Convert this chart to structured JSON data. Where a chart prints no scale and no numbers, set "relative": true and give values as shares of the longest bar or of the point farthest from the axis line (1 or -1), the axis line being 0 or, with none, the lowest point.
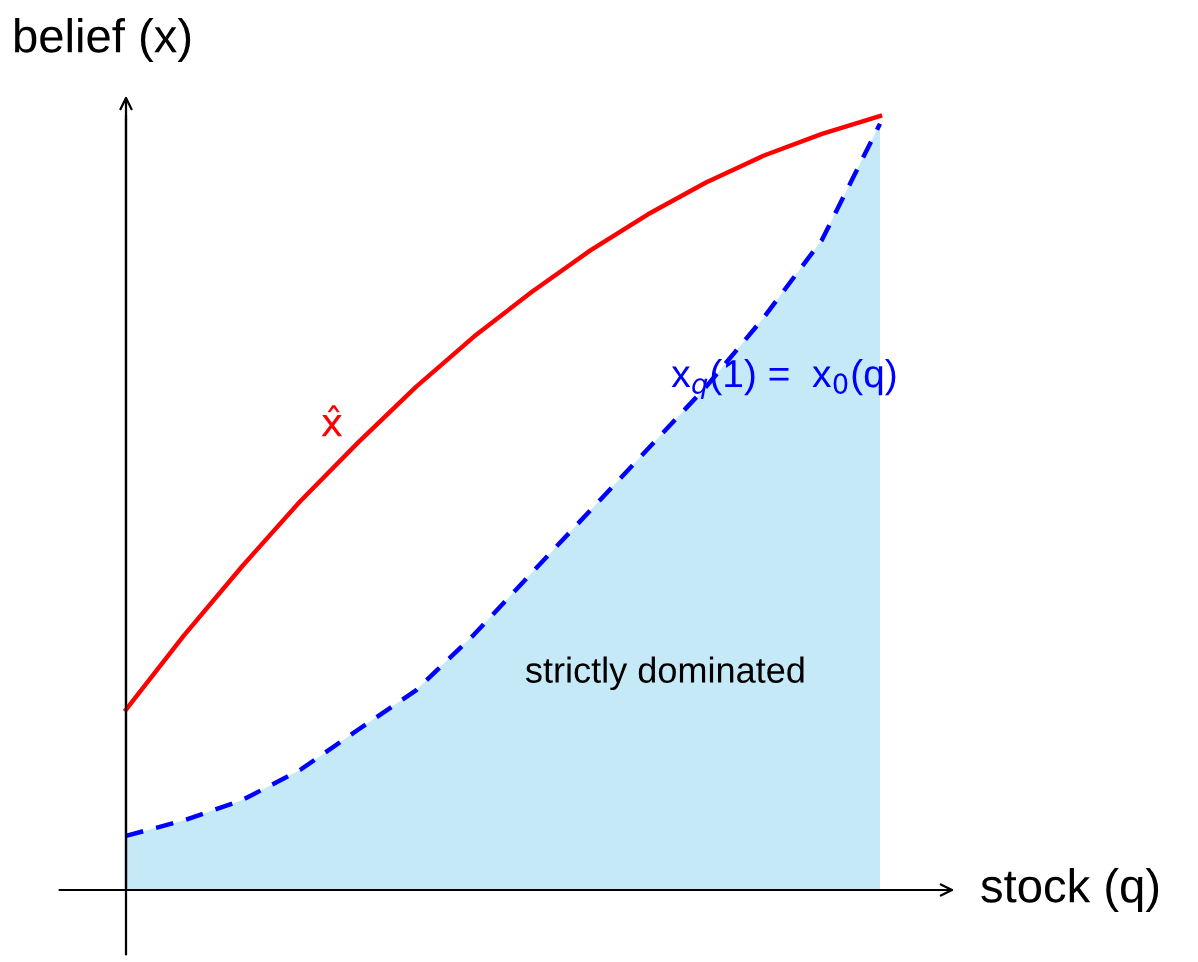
{
  "chart_data": {
    "type": "line",
    "relative": true,
    "xlabel": "stock (q)",
    "ylabel": "belief (x)",
    "categories": [
      null,
      null,
      null,
      null,
      null,
      null,
      null,
      null,
      null,
      null,
      null,
      null,
      null,
      null
    ],
    "series": [
      {
        "color": "#ff0000",
        "line_style": "solid",
        "values": [
          0.233,
          0.329,
          0.418,
          0.502,
          0.578,
          0.65,
          0.715,
          0.773,
          0.826,
          0.873,
          0.914,
          0.949,
          0.977,
          1.0
        ]
      },
      {
        "type": "area",
        "color": "#0000ff",
        "line_style": "dashed",
        "values": [
          0.07,
          0.09,
          0.116,
          0.155,
          0.207,
          0.258,
          0.33,
          0.41,
          0.49,
          0.57,
          0.65,
          0.74,
          0.84,
          0.99
        ]
      }
    ],
    "annotations": [
      "x̂",
      "x$_{q}$(1) =  x$_{0}$(q)",
      "strictly dominated"
    ],
    "grid": false,
    "legend": false
  }
}
